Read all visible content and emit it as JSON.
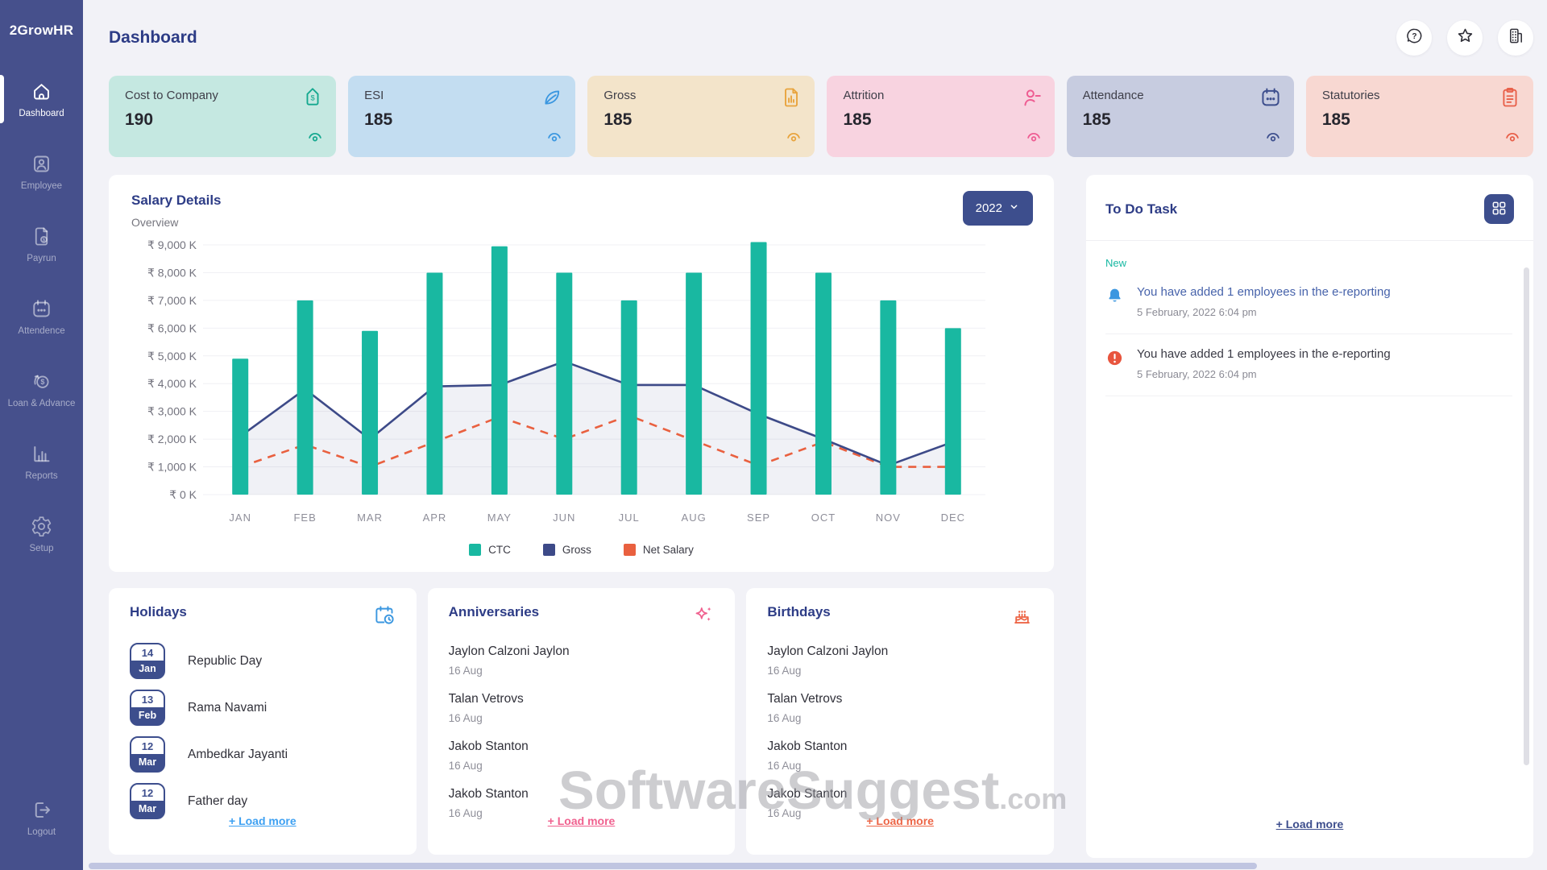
{
  "app": {
    "logo": "2GrowHR"
  },
  "header": {
    "title": "Dashboard",
    "icons": [
      "help-icon",
      "star-icon",
      "building-icon"
    ]
  },
  "sidebar": {
    "items": [
      {
        "label": "Dashboard",
        "icon": "home-icon",
        "active": true
      },
      {
        "label": "Employee",
        "icon": "employee-icon",
        "active": false
      },
      {
        "label": "Payrun",
        "icon": "payrun-icon",
        "active": false
      },
      {
        "label": "Attendence",
        "icon": "calendar-icon",
        "active": false
      },
      {
        "label": "Loan & Advance",
        "icon": "loan-icon",
        "active": false
      },
      {
        "label": "Reports",
        "icon": "reports-icon",
        "active": false
      },
      {
        "label": "Setup",
        "icon": "gear-icon",
        "active": false
      }
    ],
    "logout": {
      "label": "Logout",
      "icon": "logout-icon"
    }
  },
  "stat_cards": [
    {
      "title": "Cost to Company",
      "value": "190",
      "icon": "price-tag-icon",
      "bg": "#c5e8e1",
      "accent": "#14a88f"
    },
    {
      "title": "ESI",
      "value": "185",
      "icon": "leaf-icon",
      "bg": "#c3ddf1",
      "accent": "#3b97e0"
    },
    {
      "title": "Gross",
      "value": "185",
      "icon": "document-chart-icon",
      "bg": "#f3e4ca",
      "accent": "#e8a33d"
    },
    {
      "title": "Attrition",
      "value": "185",
      "icon": "person-minus-icon",
      "bg": "#f8d3e0",
      "accent": "#ee5c92"
    },
    {
      "title": "Attendance",
      "value": "185",
      "icon": "calendar-icon",
      "bg": "#c7cce0",
      "accent": "#3d4e8d"
    },
    {
      "title": "Statutories",
      "value": "185",
      "icon": "clipboard-icon",
      "bg": "#f8d8d2",
      "accent": "#e85f49"
    }
  ],
  "salary": {
    "title": "Salary Details",
    "subtitle": "Overview",
    "year": "2022"
  },
  "chart_data": {
    "type": "bar",
    "categories": [
      "JAN",
      "FEB",
      "MAR",
      "APR",
      "MAY",
      "JUN",
      "JUL",
      "AUG",
      "SEP",
      "OCT",
      "NOV",
      "DEC"
    ],
    "series": [
      {
        "name": "CTC",
        "type": "bar",
        "color": "#19b8a1",
        "values": [
          4900,
          7000,
          5900,
          8000,
          8950,
          8000,
          7000,
          8000,
          9100,
          8000,
          7000,
          6000
        ]
      },
      {
        "name": "Gross",
        "type": "area-line",
        "color": "#3d4a88",
        "values": [
          2100,
          3800,
          2000,
          3900,
          3950,
          4800,
          3950,
          3950,
          2900,
          2000,
          1050,
          1900
        ]
      },
      {
        "name": "Net Salary",
        "type": "dashed-line",
        "color": "#e9603f",
        "values": [
          1000,
          1800,
          1000,
          1900,
          2800,
          2000,
          2850,
          1950,
          1050,
          1900,
          1000,
          1000
        ]
      }
    ],
    "title": "Salary Details",
    "xlabel": "",
    "ylabel": "",
    "ylim": [
      0,
      9000
    ],
    "ytick_step": 1000,
    "ytick_prefix": "₹ ",
    "ytick_suffix": " K",
    "grid": "horizontal",
    "legend_position": "bottom"
  },
  "todo": {
    "title": "To Do Task",
    "new_label": "New",
    "items": [
      {
        "icon": "bell-icon",
        "text": "You have added 1 employees in the e-reporting",
        "time": "5 February, 2022 6:04 pm",
        "highlight": true
      },
      {
        "icon": "alert-icon",
        "text": "You have added 1 employees in the e-reporting",
        "time": "5 February, 2022 6:04 pm",
        "highlight": false
      }
    ],
    "load_more": "+ Load more",
    "link_color": "#3d4e8d"
  },
  "holidays": {
    "title": "Holidays",
    "icon": "calendar-clock-icon",
    "icon_color": "#3b97e0",
    "items": [
      {
        "day": "14",
        "month": "Jan",
        "name": "Republic Day"
      },
      {
        "day": "13",
        "month": "Feb",
        "name": "Rama Navami"
      },
      {
        "day": "12",
        "month": "Mar",
        "name": "Ambedkar Jayanti"
      },
      {
        "day": "12",
        "month": "Mar",
        "name": "Father day"
      }
    ],
    "load_more": "+ Load more",
    "link_color": "#3da0f2"
  },
  "anniversaries": {
    "title": "Anniversaries",
    "icon": "sparkles-icon",
    "icon_color": "#f0618f",
    "items": [
      {
        "name": "Jaylon Calzoni Jaylon",
        "date": "16 Aug"
      },
      {
        "name": "Talan Vetrovs",
        "date": "16 Aug"
      },
      {
        "name": "Jakob Stanton",
        "date": "16 Aug"
      },
      {
        "name": "Jakob Stanton",
        "date": "16 Aug"
      }
    ],
    "load_more": "+ Load more",
    "link_color": "#f0618f"
  },
  "birthdays": {
    "title": "Birthdays",
    "icon": "cake-icon",
    "icon_color": "#ed6647",
    "items": [
      {
        "name": "Jaylon Calzoni Jaylon",
        "date": "16 Aug"
      },
      {
        "name": "Talan Vetrovs",
        "date": "16 Aug"
      },
      {
        "name": "Jakob Stanton",
        "date": "16 Aug"
      },
      {
        "name": "Jakob Stanton",
        "date": "16 Aug"
      }
    ],
    "load_more": "+ Load more",
    "link_color": "#ed6647"
  },
  "watermark": {
    "text": "SoftwareSuggest",
    "suffix": ".com"
  }
}
